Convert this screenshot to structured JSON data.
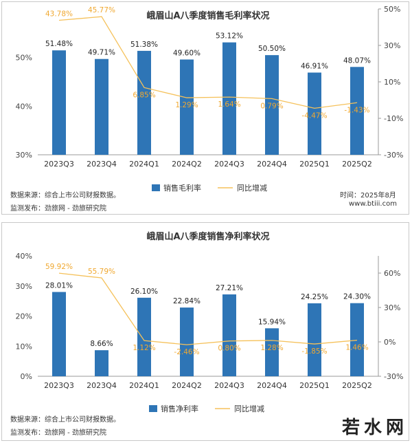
{
  "charts": [
    {
      "notes": {
        "source": "数据来源：综合上市公司财报数据。",
        "publisher": "监测发布：劲旅网 - 劲旅研究院",
        "time": "时间：2025年8月",
        "site": "www.btiii.com"
      }
    },
    {
      "notes": {
        "source": "数据来源：综合上市公司财报数据。",
        "publisher": "监测发布：劲旅网 - 劲旅研究院"
      }
    }
  ],
  "watermark": "若水网",
  "colors": {
    "bar": "#2e75b6",
    "line": "#f5c15a",
    "line_label": "#f0a830"
  },
  "chart_data": [
    {
      "type": "bar",
      "title": "峨眉山A八季度销售毛利率状况",
      "categories": [
        "2023Q3",
        "2023Q4",
        "2024Q1",
        "2024Q2",
        "2024Q3",
        "2024Q4",
        "2025Q1",
        "2025Q2"
      ],
      "series": [
        {
          "name": "销售毛利率",
          "type": "bar",
          "axis": "left",
          "values": [
            51.48,
            49.71,
            51.38,
            49.6,
            53.12,
            50.5,
            46.91,
            48.07
          ],
          "labels": [
            "51.48%",
            "49.71%",
            "51.38%",
            "49.60%",
            "53.12%",
            "50.50%",
            "46.91%",
            "48.07%"
          ]
        },
        {
          "name": "同比增减",
          "type": "line",
          "axis": "right",
          "values": [
            43.78,
            45.77,
            6.85,
            1.29,
            1.64,
            0.79,
            -4.47,
            -1.43
          ],
          "labels": [
            "43.78%",
            "45.77%",
            "6.85%",
            "1.29%",
            "1.64%",
            "0.79%",
            "-4.47%",
            "-1.43%"
          ]
        }
      ],
      "y_left": {
        "min": 30,
        "max": 60,
        "ticks": [
          30,
          40,
          50
        ],
        "tick_labels": [
          "30%",
          "40%",
          "50%"
        ]
      },
      "y_right": {
        "min": -30,
        "max": 50,
        "ticks": [
          -30,
          -10,
          10,
          30,
          50
        ],
        "tick_labels": [
          "-30%",
          "-10%",
          "10%",
          "30%",
          "50%"
        ]
      },
      "legend": "bottom-center"
    },
    {
      "type": "bar",
      "title": "峨眉山A八季度销售净利率状况",
      "categories": [
        "2023Q3",
        "2023Q4",
        "2024Q1",
        "2024Q2",
        "2024Q3",
        "2024Q4",
        "2025Q1",
        "2025Q2"
      ],
      "series": [
        {
          "name": "销售净利率",
          "type": "bar",
          "axis": "left",
          "values": [
            28.01,
            8.66,
            26.1,
            22.84,
            27.21,
            15.94,
            24.25,
            24.3
          ],
          "labels": [
            "28.01%",
            "8.66%",
            "26.10%",
            "22.84%",
            "27.21%",
            "15.94%",
            "24.25%",
            "24.30%"
          ]
        },
        {
          "name": "同比增减",
          "type": "line",
          "axis": "right",
          "values": [
            59.92,
            55.79,
            1.12,
            -2.46,
            0.8,
            1.28,
            -1.85,
            1.46
          ],
          "labels": [
            "59.92%",
            "55.79%",
            "1.12%",
            "-2.46%",
            "0.80%",
            "1.28%",
            "-1.85%",
            "1.46%"
          ]
        }
      ],
      "y_left": {
        "min": 0,
        "max": 40,
        "ticks": [
          0,
          10,
          20,
          30,
          40
        ],
        "tick_labels": [
          "0%",
          "10%",
          "20%",
          "30%",
          "40%"
        ]
      },
      "y_right": {
        "min": -30,
        "max": 75,
        "ticks": [
          -30,
          0,
          30,
          60
        ],
        "tick_labels": [
          "-30%",
          "0%",
          "30%",
          "60%"
        ]
      },
      "legend": "bottom-center"
    }
  ]
}
